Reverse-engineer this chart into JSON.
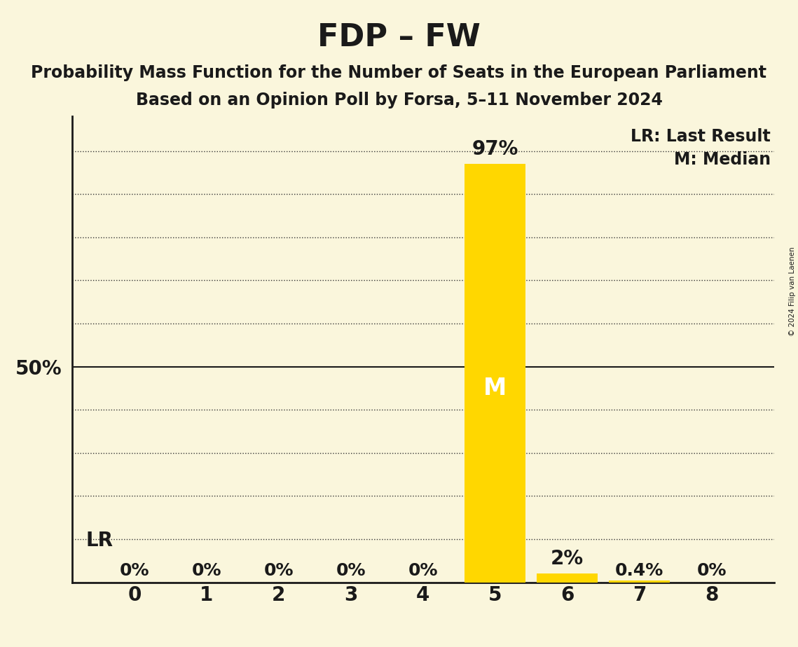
{
  "title": "FDP – FW",
  "subtitle1": "Probability Mass Function for the Number of Seats in the European Parliament",
  "subtitle2": "Based on an Opinion Poll by Forsa, 5–11 November 2024",
  "copyright": "© 2024 Filip van Laenen",
  "categories": [
    0,
    1,
    2,
    3,
    4,
    5,
    6,
    7,
    8
  ],
  "values": [
    0.0,
    0.0,
    0.0,
    0.0,
    0.0,
    0.97,
    0.02,
    0.004,
    0.0
  ],
  "bar_labels": [
    "0%",
    "0%",
    "0%",
    "0%",
    "0%",
    "97%",
    "2%",
    "0.4%",
    "0%"
  ],
  "bar_color": "#FFD700",
  "background_color": "#FAF6DC",
  "text_color": "#1A1A1A",
  "median": 5,
  "last_result": 0,
  "ylim": [
    0,
    1.08
  ],
  "yticks": [
    0.0,
    0.1,
    0.2,
    0.3,
    0.4,
    0.5,
    0.6,
    0.7,
    0.8,
    0.9,
    1.0
  ],
  "legend_lr": "LR: Last Result",
  "legend_m": "M: Median",
  "median_label_color": "#FFFFFF",
  "lr_label": "LR",
  "grid_color": "#333333",
  "spine_color": "#1A1A1A"
}
